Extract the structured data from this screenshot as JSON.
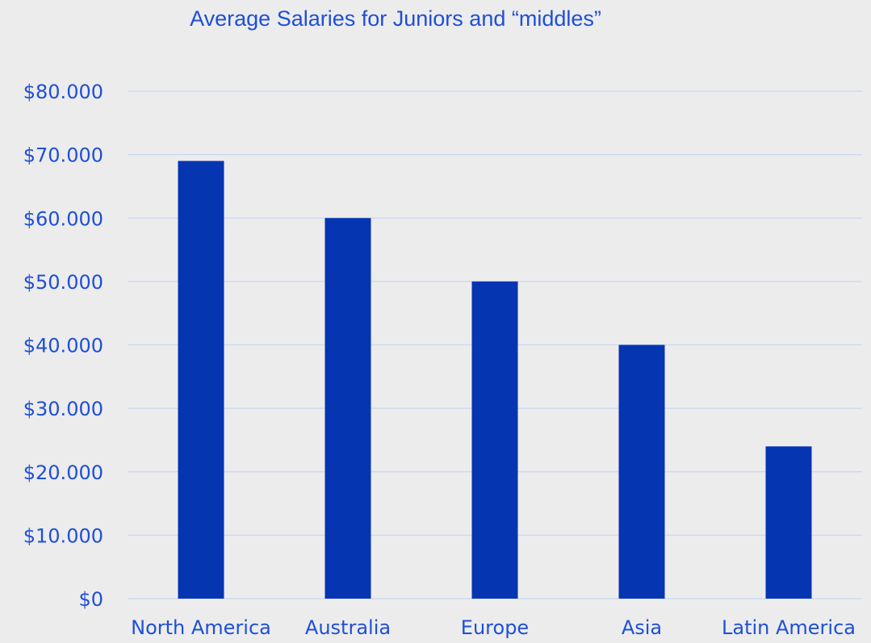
{
  "chart_data": {
    "type": "bar",
    "title": "Average Salaries for Juniors and “middles”",
    "xlabel": "",
    "ylabel": "",
    "categories": [
      "North America",
      "Australia",
      "Europe",
      "Asia",
      "Latin America"
    ],
    "values": [
      69000,
      60000,
      50000,
      40000,
      24000
    ],
    "ylim": [
      0,
      80000
    ],
    "yticks": [
      0,
      10000,
      20000,
      30000,
      40000,
      50000,
      60000,
      70000,
      80000
    ],
    "ytick_labels": [
      "$0",
      "$10.000",
      "$20.000",
      "$30.000",
      "$40.000",
      "$50.000",
      "$60.000",
      "$70.000",
      "$80.000"
    ],
    "grid": true,
    "legend": "none",
    "colors": {
      "bar": "#0635b2",
      "text": "#1f4fd6",
      "grid": "#c9d6f4",
      "background": "#ececec"
    }
  }
}
